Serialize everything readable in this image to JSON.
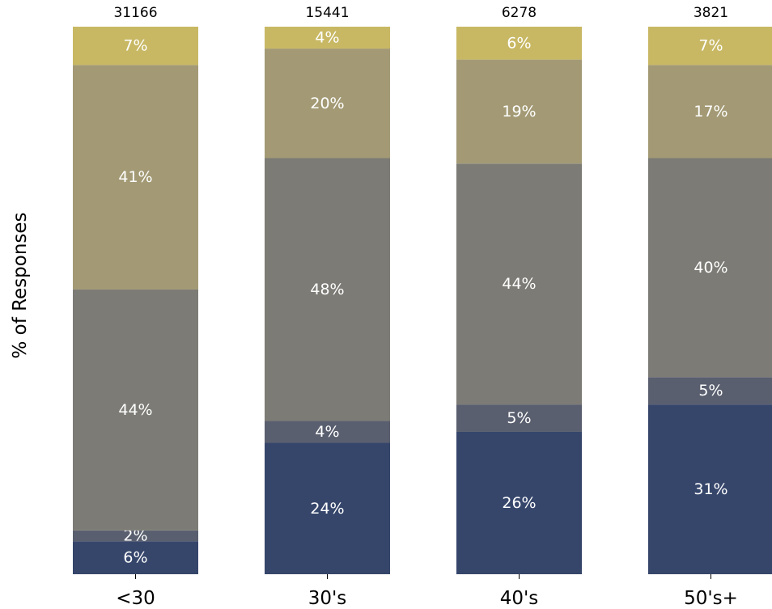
{
  "chart_data": {
    "type": "bar",
    "stacked": true,
    "orientation": "vertical",
    "normalized": true,
    "title": "",
    "xlabel": "",
    "ylabel": "% of Responses",
    "ylim": [
      0,
      100
    ],
    "grid": false,
    "categories": [
      "<30",
      "30's",
      "40's",
      "50's+"
    ],
    "totals": [
      "31166",
      "15441",
      "6278",
      "3821"
    ],
    "series": [
      {
        "color": "#36466b",
        "values": [
          6,
          24,
          26,
          31
        ],
        "labels": [
          "6%",
          "24%",
          "26%",
          "31%"
        ]
      },
      {
        "color": "#5a5f6f",
        "values": [
          2,
          4,
          5,
          5
        ],
        "labels": [
          "2%",
          "4%",
          "5%",
          "5%"
        ]
      },
      {
        "color": "#7c7b75",
        "values": [
          44,
          48,
          44,
          40
        ],
        "labels": [
          "44%",
          "48%",
          "44%",
          "40%"
        ]
      },
      {
        "color": "#a39a75",
        "values": [
          41,
          20,
          19,
          17
        ],
        "labels": [
          "41%",
          "20%",
          "19%",
          "17%"
        ]
      },
      {
        "color": "#c8b864",
        "values": [
          7,
          4,
          6,
          7
        ],
        "labels": [
          "7%",
          "4%",
          "6%",
          "7%"
        ]
      }
    ]
  }
}
